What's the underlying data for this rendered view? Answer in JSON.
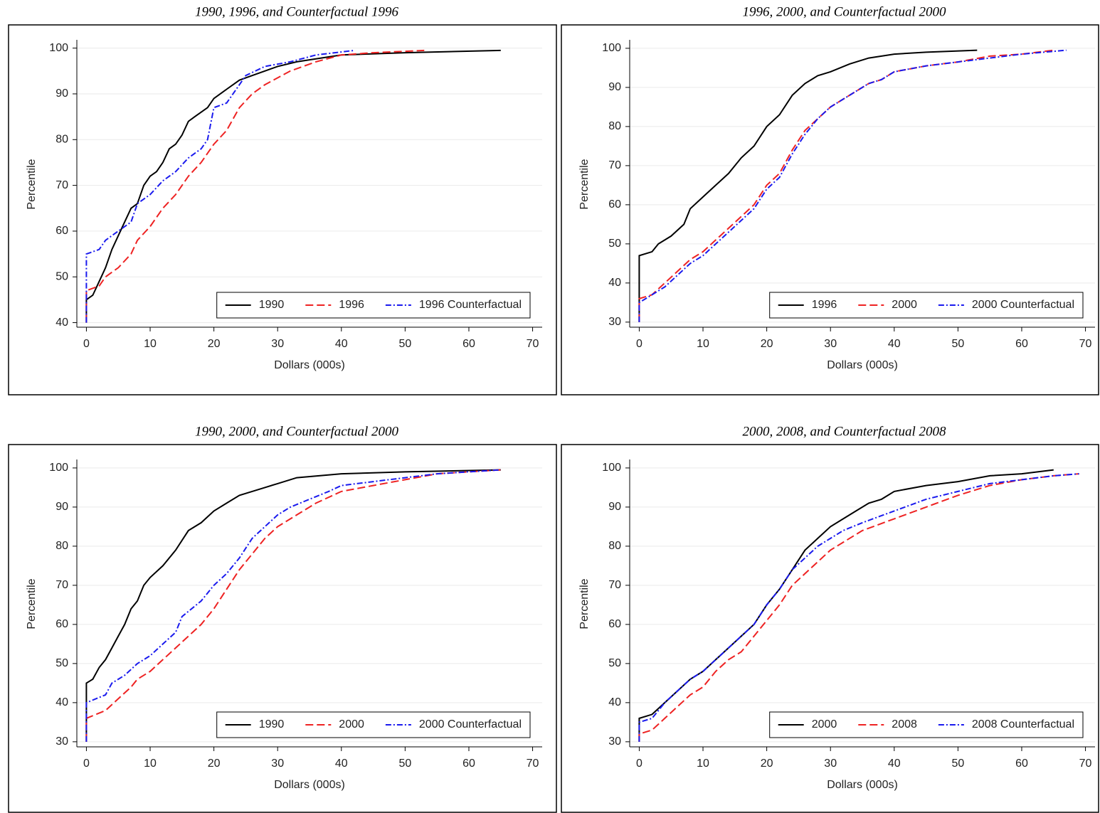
{
  "chart_data": [
    {
      "type": "line",
      "title": "1990, 1996, and Counterfactual 1996",
      "xlabel": "Dollars (000s)",
      "ylabel": "Percentile",
      "xlim": [
        -1.5,
        71.5
      ],
      "ylim": [
        39,
        101.5
      ],
      "xticks": [
        0,
        10,
        20,
        30,
        40,
        50,
        60,
        70
      ],
      "yticks": [
        40,
        50,
        60,
        70,
        80,
        90,
        100
      ],
      "grid": true,
      "legend": "lower right",
      "series": [
        {
          "name": "1990",
          "color": "#000000",
          "dash": "solid",
          "x": [
            0,
            0,
            1,
            2,
            3,
            4,
            5,
            6,
            7,
            8,
            9,
            10,
            11,
            12,
            13,
            14,
            15,
            16,
            17,
            18,
            19,
            20,
            22,
            24,
            26,
            28,
            30,
            33,
            40,
            50,
            65
          ],
          "values": [
            40,
            45,
            46,
            49,
            52,
            56,
            59,
            62,
            65,
            66,
            70,
            72,
            73,
            75,
            78,
            79,
            81,
            84,
            85,
            86,
            87,
            89,
            91,
            93,
            94,
            95,
            96,
            97,
            98.5,
            99,
            99.5
          ]
        },
        {
          "name": "1996",
          "color": "#ee2222",
          "dash": "dash",
          "x": [
            0,
            0,
            2,
            3,
            5,
            7,
            8,
            10,
            12,
            14,
            16,
            18,
            20,
            22,
            24,
            26,
            28,
            32,
            36,
            40,
            45,
            53
          ],
          "values": [
            40,
            47,
            48,
            50,
            52,
            55,
            58,
            61,
            65,
            68,
            72,
            75,
            79,
            82,
            87,
            90,
            92,
            95,
            97,
            98.5,
            99,
            99.5
          ]
        },
        {
          "name": "1996 Counterfactual",
          "color": "#1a1aee",
          "dash": "dashdot",
          "x": [
            0,
            0,
            2,
            3,
            5,
            7,
            8,
            10,
            12,
            14,
            16,
            18,
            19,
            20,
            22,
            24,
            25,
            28,
            32,
            36,
            42
          ],
          "values": [
            40,
            55,
            56,
            58,
            60,
            62,
            66,
            68,
            71,
            73,
            76,
            78,
            80,
            87,
            88,
            92,
            94,
            96,
            97,
            98.5,
            99.5
          ]
        }
      ]
    },
    {
      "type": "line",
      "title": "1996, 2000, and Counterfactual 2000",
      "xlabel": "Dollars (000s)",
      "ylabel": "Percentile",
      "xlim": [
        -1.5,
        71.5
      ],
      "ylim": [
        28.7,
        101.8
      ],
      "xticks": [
        0,
        10,
        20,
        30,
        40,
        50,
        60,
        70
      ],
      "yticks": [
        30,
        40,
        50,
        60,
        70,
        80,
        90,
        100
      ],
      "grid": true,
      "legend": "lower right",
      "series": [
        {
          "name": "1996",
          "color": "#000000",
          "dash": "solid",
          "x": [
            0,
            0,
            2,
            3,
            5,
            7,
            8,
            10,
            12,
            14,
            16,
            18,
            20,
            22,
            24,
            26,
            28,
            30,
            33,
            36,
            40,
            45,
            53
          ],
          "values": [
            30,
            47,
            48,
            50,
            52,
            55,
            59,
            62,
            65,
            68,
            72,
            75,
            80,
            83,
            88,
            91,
            93,
            94,
            96,
            97.5,
            98.5,
            99,
            99.5
          ]
        },
        {
          "name": "2000",
          "color": "#ee2222",
          "dash": "dash",
          "x": [
            0,
            0,
            2,
            4,
            6,
            8,
            10,
            12,
            14,
            16,
            18,
            20,
            22,
            24,
            26,
            28,
            30,
            32,
            34,
            36,
            38,
            40,
            45,
            50,
            55,
            60,
            65
          ],
          "values": [
            30,
            36,
            37,
            40,
            43,
            46,
            48,
            51,
            54,
            57,
            60,
            65,
            68,
            74,
            79,
            82,
            85,
            87,
            89,
            91,
            92,
            94,
            95.5,
            96.5,
            98,
            98.5,
            99.5
          ]
        },
        {
          "name": "2000 Counterfactual",
          "color": "#1a1aee",
          "dash": "dashdot",
          "x": [
            0,
            0,
            2,
            4,
            6,
            8,
            10,
            12,
            14,
            16,
            18,
            20,
            22,
            24,
            26,
            28,
            30,
            32,
            34,
            36,
            38,
            40,
            45,
            50,
            55,
            60,
            67
          ],
          "values": [
            30,
            35,
            37,
            39,
            42,
            45,
            47,
            50,
            53,
            56,
            59,
            64,
            67,
            73,
            78,
            82,
            85,
            87,
            89,
            91,
            92,
            94,
            95.5,
            96.5,
            97.5,
            98.5,
            99.5
          ]
        }
      ]
    },
    {
      "type": "line",
      "title": "1990, 2000, and Counterfactual 2000",
      "xlabel": "Dollars (000s)",
      "ylabel": "Percentile",
      "xlim": [
        -1.5,
        71.5
      ],
      "ylim": [
        28.7,
        101.8
      ],
      "xticks": [
        0,
        10,
        20,
        30,
        40,
        50,
        60,
        70
      ],
      "yticks": [
        30,
        40,
        50,
        60,
        70,
        80,
        90,
        100
      ],
      "grid": true,
      "legend": "lower right",
      "series": [
        {
          "name": "1990",
          "color": "#000000",
          "dash": "solid",
          "x": [
            0,
            0,
            1,
            2,
            3,
            4,
            5,
            6,
            7,
            8,
            9,
            10,
            12,
            14,
            16,
            18,
            20,
            22,
            24,
            26,
            28,
            30,
            33,
            40,
            50,
            65
          ],
          "values": [
            30,
            45,
            46,
            49,
            51,
            54,
            57,
            60,
            64,
            66,
            70,
            72,
            75,
            79,
            84,
            86,
            89,
            91,
            93,
            94,
            95,
            96,
            97.5,
            98.5,
            99,
            99.5
          ]
        },
        {
          "name": "2000",
          "color": "#ee2222",
          "dash": "dash",
          "x": [
            0,
            0,
            3,
            5,
            7,
            8,
            10,
            12,
            14,
            16,
            18,
            20,
            22,
            24,
            26,
            28,
            30,
            33,
            36,
            40,
            45,
            50,
            55,
            65
          ],
          "values": [
            30,
            36,
            38,
            41,
            44,
            46,
            48,
            51,
            54,
            57,
            60,
            64,
            69,
            74,
            78,
            82,
            85,
            88,
            91,
            94,
            95.5,
            97,
            98.5,
            99.5
          ]
        },
        {
          "name": "2000 Counterfactual",
          "color": "#1a1aee",
          "dash": "dashdot",
          "x": [
            0,
            0,
            3,
            4,
            6,
            8,
            10,
            12,
            14,
            15,
            18,
            20,
            22,
            24,
            26,
            28,
            30,
            32,
            35,
            38,
            40,
            45,
            50,
            55,
            65
          ],
          "values": [
            30,
            40,
            42,
            45,
            47,
            50,
            52,
            55,
            58,
            62,
            66,
            70,
            73,
            77,
            82,
            85,
            88,
            90,
            92,
            94,
            95.5,
            96.5,
            97.5,
            98.5,
            99.5
          ]
        }
      ]
    },
    {
      "type": "line",
      "title": "2000, 2008, and Counterfactual 2008",
      "xlabel": "Dollars (000s)",
      "ylabel": "Percentile",
      "xlim": [
        -1.5,
        71.5
      ],
      "ylim": [
        28.7,
        101.8
      ],
      "xticks": [
        0,
        10,
        20,
        30,
        40,
        50,
        60,
        70
      ],
      "yticks": [
        30,
        40,
        50,
        60,
        70,
        80,
        90,
        100
      ],
      "grid": true,
      "legend": "lower right",
      "series": [
        {
          "name": "2000",
          "color": "#000000",
          "dash": "solid",
          "x": [
            0,
            0,
            2,
            4,
            6,
            8,
            10,
            12,
            14,
            16,
            18,
            20,
            22,
            24,
            26,
            28,
            30,
            32,
            34,
            36,
            38,
            40,
            45,
            50,
            55,
            60,
            65
          ],
          "values": [
            30,
            36,
            37,
            40,
            43,
            46,
            48,
            51,
            54,
            57,
            60,
            65,
            69,
            74,
            79,
            82,
            85,
            87,
            89,
            91,
            92,
            94,
            95.5,
            96.5,
            98,
            98.5,
            99.5
          ]
        },
        {
          "name": "2008",
          "color": "#ee2222",
          "dash": "dash",
          "x": [
            0,
            0,
            2,
            4,
            6,
            8,
            10,
            12,
            14,
            16,
            18,
            20,
            22,
            24,
            26,
            28,
            30,
            32,
            35,
            40,
            45,
            50,
            55,
            60,
            65,
            69
          ],
          "values": [
            30,
            32,
            33,
            36,
            39,
            42,
            44,
            48,
            51,
            53,
            57,
            61,
            65,
            70,
            73,
            76,
            79,
            81,
            84,
            87,
            90,
            93,
            95.5,
            97,
            98,
            98.5
          ]
        },
        {
          "name": "2008 Counterfactual",
          "color": "#1a1aee",
          "dash": "dashdot",
          "x": [
            0,
            0,
            2,
            4,
            6,
            8,
            10,
            12,
            14,
            16,
            18,
            20,
            22,
            24,
            26,
            28,
            30,
            32,
            35,
            40,
            45,
            50,
            55,
            60,
            65,
            69
          ],
          "values": [
            30,
            35,
            36,
            40,
            43,
            46,
            48,
            51,
            54,
            57,
            60,
            65,
            69,
            74,
            77,
            80,
            82,
            84,
            86,
            89,
            92,
            94,
            96,
            97,
            98,
            98.5
          ]
        }
      ]
    }
  ]
}
